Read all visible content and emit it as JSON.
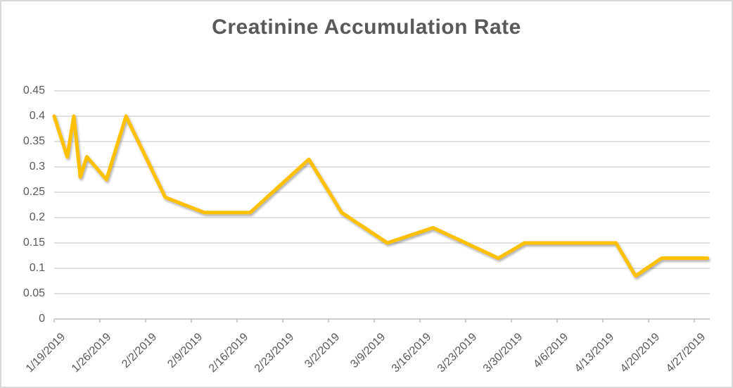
{
  "title": "Creatinine Accumulation Rate",
  "colors": {
    "line": "#FFC000",
    "title_text": "#595959",
    "axis_text": "#595959",
    "gridline": "#D9D9D9",
    "axis_line": "#BFBFBF",
    "border": "#D9D9D9",
    "background": "#FFFFFF"
  },
  "chart_data": {
    "type": "line",
    "title": "Creatinine Accumulation Rate",
    "xlabel": "",
    "ylabel": "",
    "ylim": [
      0,
      0.45
    ],
    "y_step": 0.05,
    "grid": "horizontal",
    "legend": "none",
    "markers": "none",
    "y_tick_labels": [
      "0",
      "0.05",
      "0.1",
      "0.15",
      "0.2",
      "0.25",
      "0.3",
      "0.35",
      "0.4",
      "0.45"
    ],
    "x_tick_labels": [
      "1/19/2019",
      "1/26/2019",
      "2/2/2019",
      "2/9/2019",
      "2/16/2019",
      "2/23/2019",
      "3/2/2019",
      "3/9/2019",
      "3/16/2019",
      "3/23/2019",
      "3/30/2019",
      "4/6/2019",
      "4/13/2019",
      "4/20/2019",
      "4/27/2019"
    ],
    "series": [
      {
        "name": "Creatinine Accumulation Rate",
        "color": "#FFC000",
        "points": [
          {
            "date": "1/19/2019",
            "value": 0.4
          },
          {
            "date": "1/21/2019",
            "value": 0.32
          },
          {
            "date": "1/22/2019",
            "value": 0.4
          },
          {
            "date": "1/23/2019",
            "value": 0.28
          },
          {
            "date": "1/24/2019",
            "value": 0.32
          },
          {
            "date": "1/27/2019",
            "value": 0.275
          },
          {
            "date": "1/30/2019",
            "value": 0.4
          },
          {
            "date": "2/5/2019",
            "value": 0.24
          },
          {
            "date": "2/11/2019",
            "value": 0.21
          },
          {
            "date": "2/18/2019",
            "value": 0.21
          },
          {
            "date": "2/27/2019",
            "value": 0.315
          },
          {
            "date": "3/4/2019",
            "value": 0.21
          },
          {
            "date": "3/11/2019",
            "value": 0.15
          },
          {
            "date": "3/18/2019",
            "value": 0.18
          },
          {
            "date": "3/28/2019",
            "value": 0.12
          },
          {
            "date": "4/1/2019",
            "value": 0.15
          },
          {
            "date": "4/15/2019",
            "value": 0.15
          },
          {
            "date": "4/18/2019",
            "value": 0.085
          },
          {
            "date": "4/22/2019",
            "value": 0.12
          },
          {
            "date": "4/29/2019",
            "value": 0.12
          }
        ]
      }
    ]
  }
}
